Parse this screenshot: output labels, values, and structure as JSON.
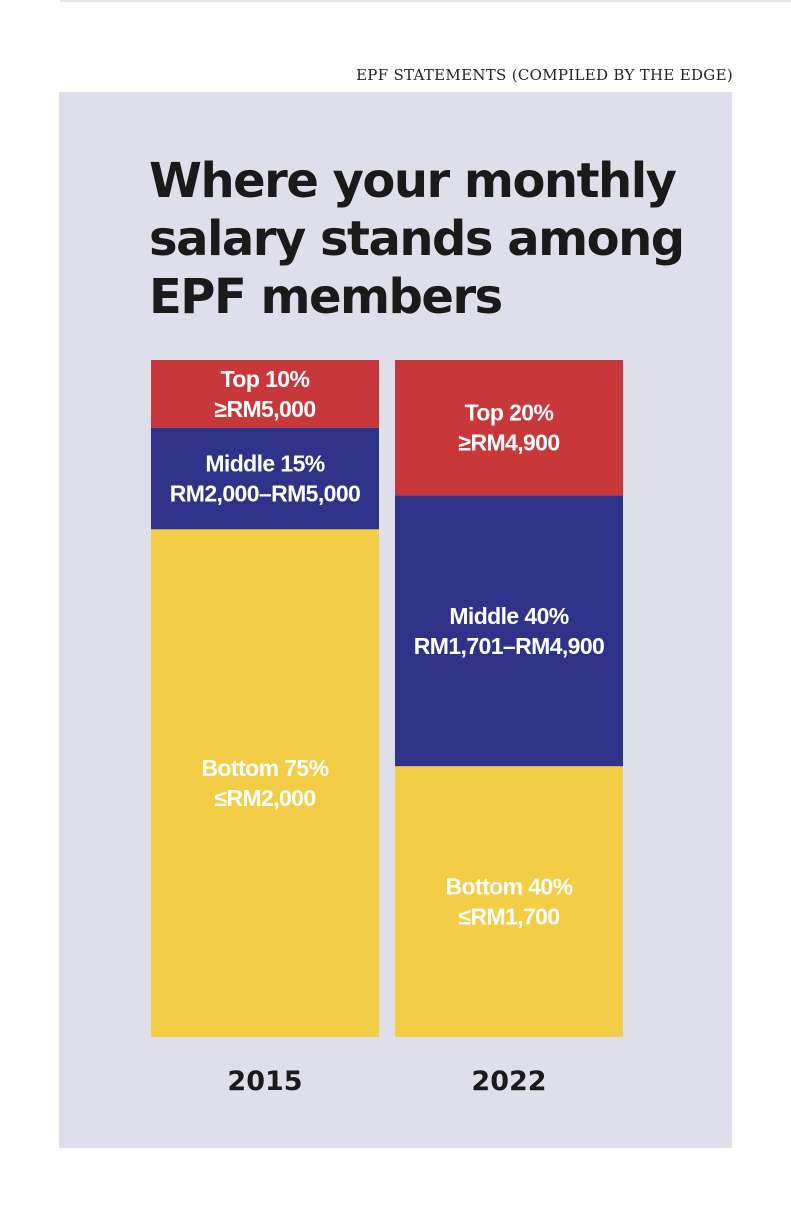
{
  "source": "EPF STATEMENTS (COMPILED BY THE EDGE)",
  "chart_data": {
    "type": "bar",
    "stacked": true,
    "normalized_percent": true,
    "title_lines": [
      "Where your monthly",
      "salary stands among",
      "EPF members"
    ],
    "colors": {
      "bottom": "#f4cd46",
      "middle": "#2e3389",
      "top": "#c8373a",
      "panel": "#dfdfeb"
    },
    "bars": [
      {
        "category": "2015",
        "segments": [
          {
            "name": "Bottom 75%",
            "range": "≤RM2,000",
            "value": 75,
            "tier": "bottom"
          },
          {
            "name": "Middle 15%",
            "range": "RM2,000–RM5,000",
            "value": 15,
            "tier": "middle"
          },
          {
            "name": "Top 10%",
            "range": "≥RM5,000",
            "value": 10,
            "tier": "top"
          }
        ]
      },
      {
        "category": "2022",
        "segments": [
          {
            "name": "Bottom 40%",
            "range": "≤RM1,700",
            "value": 40,
            "tier": "bottom"
          },
          {
            "name": "Middle 40%",
            "range": "RM1,701–RM4,900",
            "value": 40,
            "tier": "middle"
          },
          {
            "name": "Top 20%",
            "range": "≥RM4,900",
            "value": 20,
            "tier": "top"
          }
        ]
      }
    ]
  }
}
